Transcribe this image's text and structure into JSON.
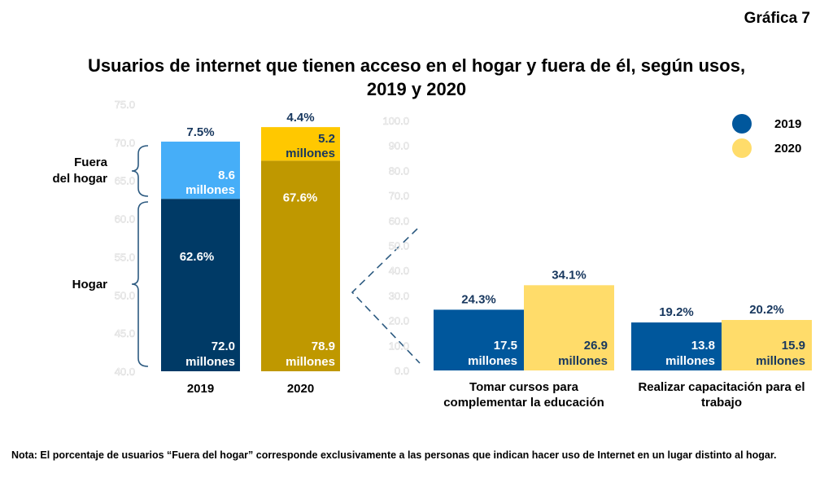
{
  "header": {
    "figure_label": "Gráfica 7",
    "title_line1": "Usuarios de internet que tienen acceso en el hogar y fuera de él, según usos,",
    "title_line2": "2019 y 2020"
  },
  "colors": {
    "hogar_2019": "#003a66",
    "fuera_2019": "#46aef8",
    "hogar_2020": "#bf9800",
    "fuera_2020": "#ffc800",
    "uso_2019": "#00579c",
    "uso_2020": "#ffdc6a",
    "label_dark": "#17375e",
    "axis_faint": "#d9d9d9",
    "bracket": "#2c5a80"
  },
  "legend": {
    "items": [
      {
        "label": "2019",
        "color": "#00579c"
      },
      {
        "label": "2020",
        "color": "#ffdc6a"
      }
    ]
  },
  "note": "Nota: El porcentaje de usuarios “Fuera del hogar” corresponde exclusivamente a las personas que indican hacer uso de Internet en un lugar distinto al hogar.",
  "chart_data": [
    {
      "type": "bar",
      "stacked": true,
      "title": "",
      "categories": [
        "2019",
        "2020"
      ],
      "ylim": [
        40,
        75
      ],
      "yticks": [
        "40.0",
        "45.0",
        "50.0",
        "55.0",
        "60.0",
        "65.0",
        "70.0",
        "75.0"
      ],
      "grid": false,
      "brackets": [
        {
          "label_line1": "Fuera",
          "label_line2": "del hogar"
        },
        {
          "label_line1": "Hogar",
          "label_line2": ""
        }
      ],
      "series": [
        {
          "name": "Hogar",
          "values": [
            62.6,
            67.6
          ],
          "pct_labels": [
            "62.6%",
            "67.6%"
          ],
          "count_labels": [
            "72.0",
            "78.9"
          ],
          "unit": "millones"
        },
        {
          "name": "Fuera del hogar",
          "values": [
            7.5,
            4.4
          ],
          "pct_labels": [
            "7.5%",
            "4.4%"
          ],
          "count_labels": [
            "8.6",
            "5.2"
          ],
          "unit": "millones"
        }
      ]
    },
    {
      "type": "bar",
      "stacked": false,
      "title": "",
      "categories": [
        {
          "line1": "Tomar cursos para",
          "line2": "complementar la educación"
        },
        {
          "line1": "Realizar capacitación para el",
          "line2": "trabajo"
        }
      ],
      "ylim": [
        0,
        100
      ],
      "yticks": [
        "0.0",
        "10.0",
        "20.0",
        "30.0",
        "40.0",
        "50.0",
        "60.0",
        "70.0",
        "80.0",
        "90.0",
        "100.0"
      ],
      "grid": false,
      "legend": "top-right",
      "series": [
        {
          "name": "2019",
          "values": [
            24.3,
            19.2
          ],
          "pct_labels": [
            "24.3%",
            "19.2%"
          ],
          "count_labels": [
            "17.5",
            "13.8"
          ],
          "unit": "millones"
        },
        {
          "name": "2020",
          "values": [
            34.1,
            20.2
          ],
          "pct_labels": [
            "34.1%",
            "20.2%"
          ],
          "count_labels": [
            "26.9",
            "15.9"
          ],
          "unit": "millones"
        }
      ]
    }
  ]
}
